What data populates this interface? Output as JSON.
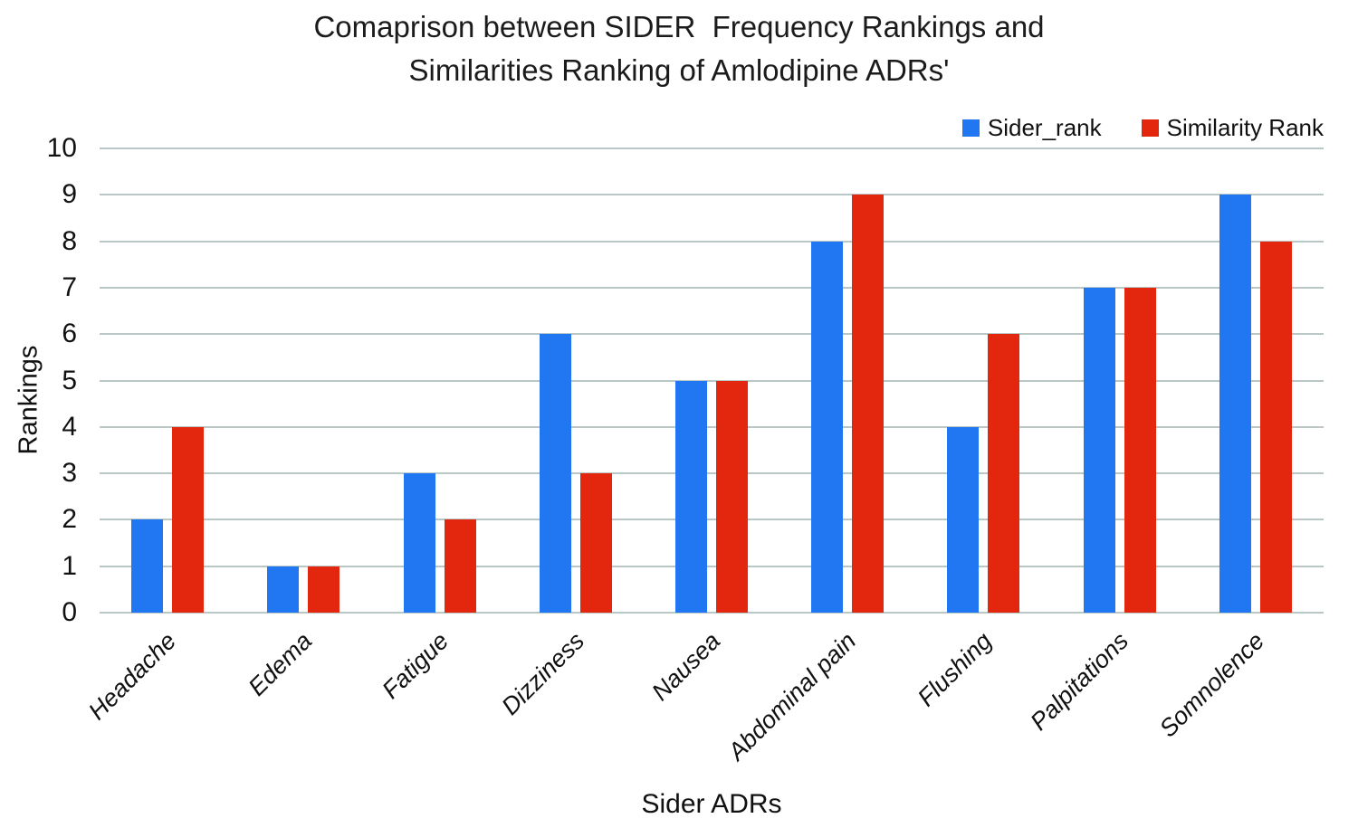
{
  "title_lines": [
    "Comaprison between SIDER  Frequency Rankings and",
    "Similarities Ranking of Amlodipine ADRs'"
  ],
  "chart_data": {
    "type": "bar",
    "title": "Comaprison between SIDER  Frequency Rankings and Similarities Ranking of Amlodipine ADRs'",
    "categories": [
      "Headache",
      "Edema",
      "Fatigue",
      "Dizziness",
      "Nausea",
      "Abdominal pain",
      "Flushing",
      "Palpitations",
      "Somnolence"
    ],
    "series": [
      {
        "name": "Sider_rank",
        "color": "#2176F2",
        "values": [
          2,
          1,
          3,
          6,
          5,
          8,
          4,
          7,
          9
        ]
      },
      {
        "name": "Similarity Rank",
        "color": "#E3270E",
        "values": [
          4,
          1,
          2,
          3,
          5,
          9,
          6,
          7,
          8
        ]
      }
    ],
    "xlabel": "Sider ADRs",
    "ylabel": "Rankings",
    "ylim": [
      0,
      10
    ],
    "yticks": [
      0,
      1,
      2,
      3,
      4,
      5,
      6,
      7,
      8,
      9,
      10
    ],
    "grid": true,
    "legend_position": "top-right"
  },
  "colors": {
    "gridline": "#B9C7C6",
    "background": "#FFFFFF",
    "text": "#1B1B1B"
  }
}
